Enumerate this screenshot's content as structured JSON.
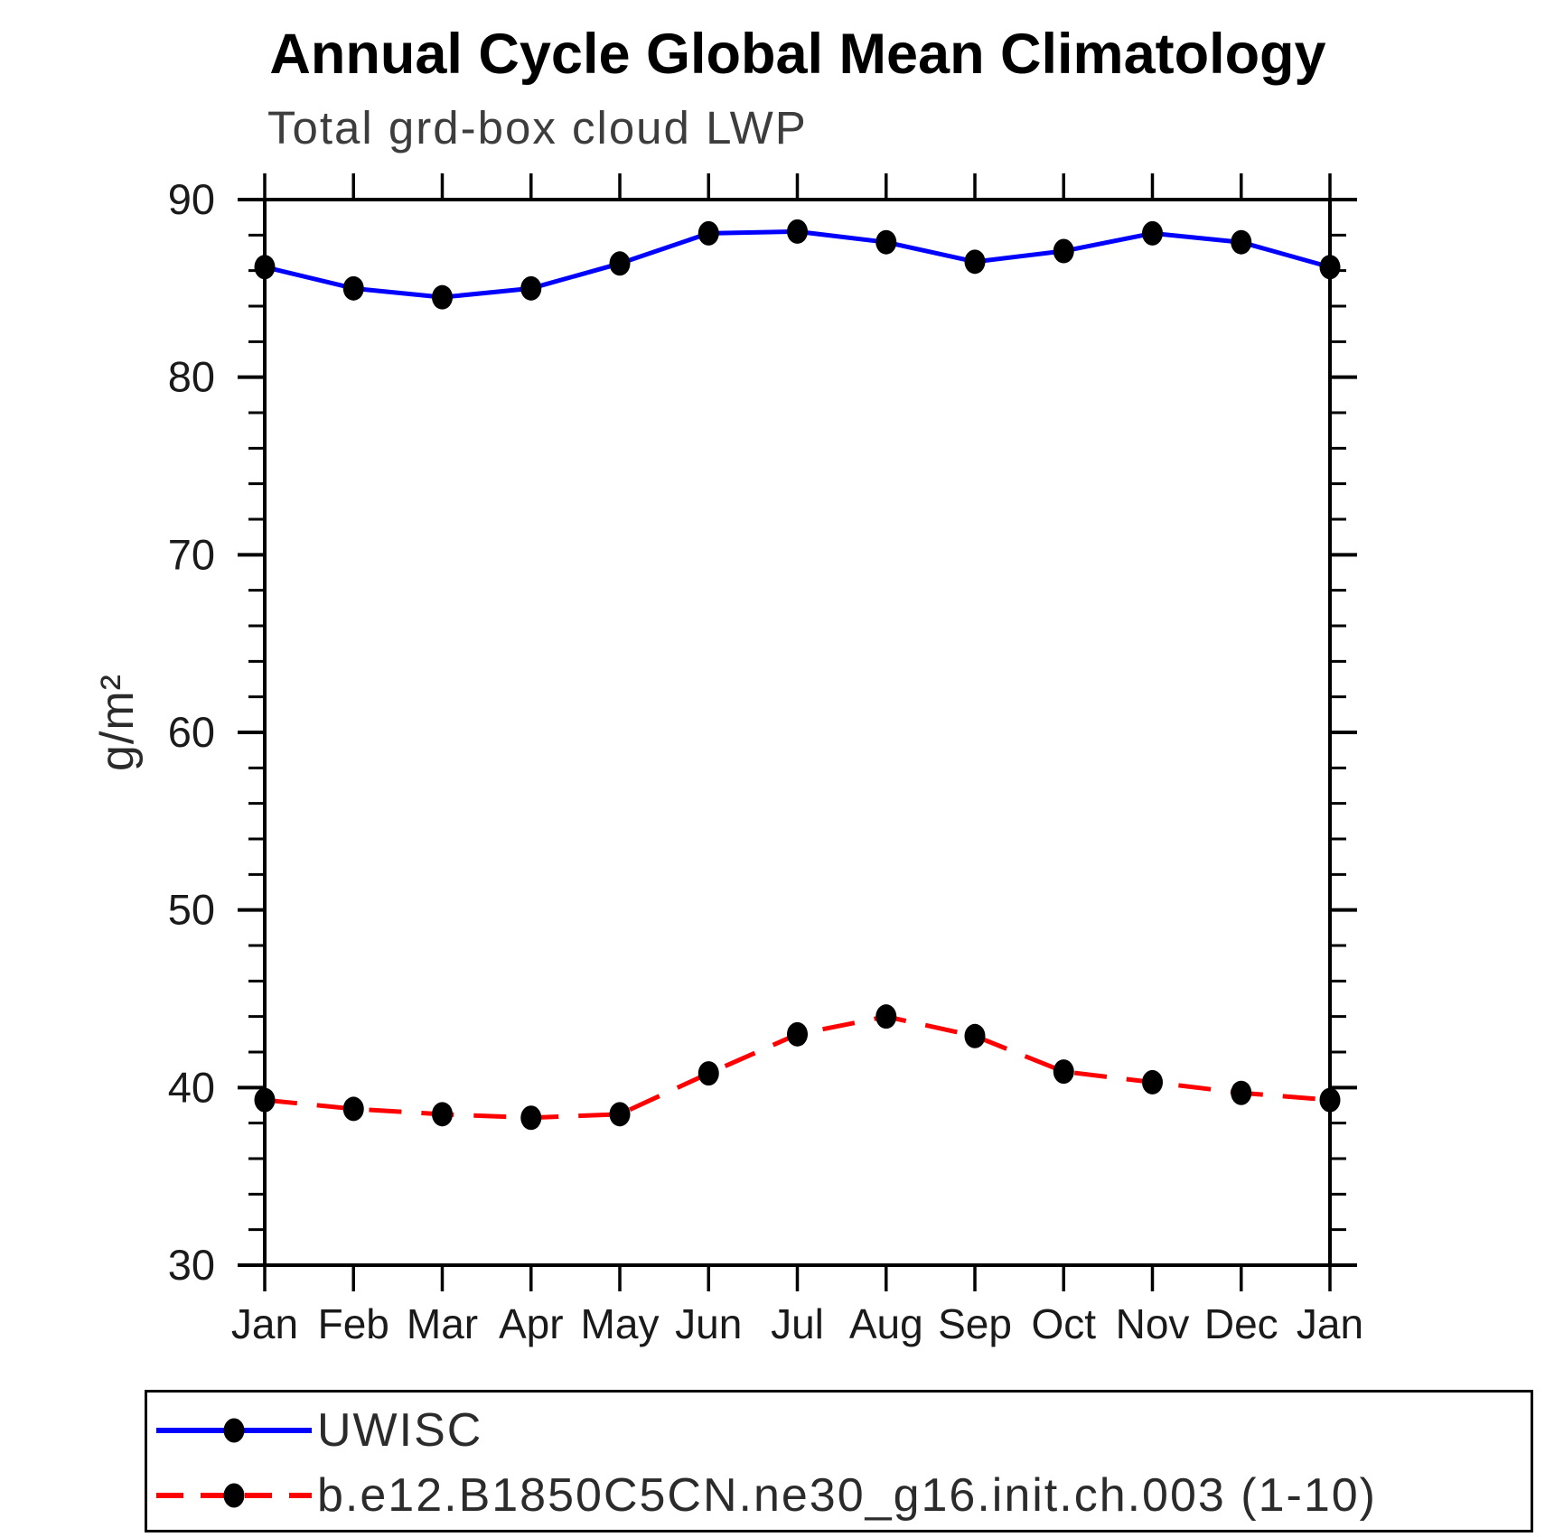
{
  "window": {
    "background": "#ffffff",
    "text_color": "#111111"
  },
  "chart_data": {
    "type": "line",
    "title": "Annual Cycle Global Mean Climatology",
    "subtitle": "Total grd-box cloud LWP",
    "ylabel": "g/m²",
    "xlabel": "",
    "categories": [
      "Jan",
      "Feb",
      "Mar",
      "Apr",
      "May",
      "Jun",
      "Jul",
      "Aug",
      "Sep",
      "Oct",
      "Nov",
      "Dec",
      "Jan"
    ],
    "ylim": [
      30,
      90
    ],
    "ytick_major": [
      30,
      40,
      50,
      60,
      70,
      80,
      90
    ],
    "ytick_minor_step": 2,
    "grid": false,
    "legend_position": "bottom-left-box",
    "series": [
      {
        "name": "UWISC",
        "color": "#0000ff",
        "line_style": "solid",
        "marker": "filled-circle",
        "marker_color": "#000000",
        "values": [
          86.2,
          85.0,
          84.5,
          85.0,
          86.4,
          88.1,
          88.2,
          87.6,
          86.5,
          87.1,
          88.1,
          87.6,
          86.2
        ]
      },
      {
        "name": "b.e12.B1850C5CN.ne30_g16.init.ch.003 (1-10)",
        "color": "#ff0000",
        "line_style": "dashed",
        "marker": "filled-circle",
        "marker_color": "#000000",
        "values": [
          39.3,
          38.8,
          38.5,
          38.3,
          38.5,
          40.8,
          43.0,
          44.0,
          42.9,
          40.9,
          40.3,
          39.7,
          39.3
        ]
      }
    ]
  }
}
